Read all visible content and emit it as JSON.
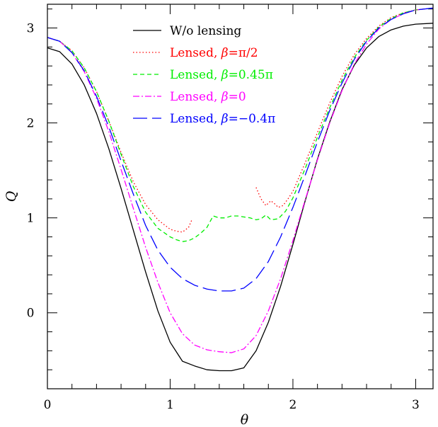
{
  "chart_data": {
    "type": "line",
    "xlabel": "θ",
    "ylabel": "Q",
    "xlim": [
      0,
      3.1416
    ],
    "ylim": [
      -0.8,
      3.25
    ],
    "x_ticks": [
      0,
      1,
      2,
      3
    ],
    "y_ticks": [
      0,
      1,
      2,
      3
    ],
    "x_tick_labels": [
      "0",
      "1",
      "2",
      "3"
    ],
    "y_tick_labels": [
      "0",
      "1",
      "2",
      "3"
    ],
    "legend_position": "top-center",
    "series": [
      {
        "name": "W/o lensing",
        "label_parts": [
          "W/o lensing"
        ],
        "color": "#000000",
        "dash": "solid",
        "segments": [
          [
            [
              0,
              2.79
            ],
            [
              0.1,
              2.75
            ],
            [
              0.2,
              2.62
            ],
            [
              0.3,
              2.4
            ],
            [
              0.4,
              2.1
            ],
            [
              0.5,
              1.73
            ],
            [
              0.6,
              1.31
            ],
            [
              0.7,
              0.87
            ],
            [
              0.8,
              0.43
            ],
            [
              0.9,
              0.02
            ],
            [
              1.0,
              -0.31
            ],
            [
              1.1,
              -0.51
            ],
            [
              1.2,
              -0.56
            ],
            [
              1.3,
              -0.6
            ],
            [
              1.4,
              -0.61
            ],
            [
              1.5,
              -0.61
            ],
            [
              1.6,
              -0.58
            ],
            [
              1.7,
              -0.4
            ],
            [
              1.8,
              -0.1
            ],
            [
              1.9,
              0.28
            ],
            [
              2.0,
              0.72
            ],
            [
              2.1,
              1.18
            ],
            [
              2.2,
              1.62
            ],
            [
              2.3,
              2.01
            ],
            [
              2.4,
              2.35
            ],
            [
              2.5,
              2.61
            ],
            [
              2.6,
              2.79
            ],
            [
              2.7,
              2.91
            ],
            [
              2.8,
              2.98
            ],
            [
              2.9,
              3.02
            ],
            [
              3.0,
              3.04
            ],
            [
              3.1416,
              3.05
            ]
          ]
        ]
      },
      {
        "name": "Lensed, β=π/2",
        "label_parts": [
          "Lensed, ",
          "β",
          "=π/2"
        ],
        "color": "#ff0000",
        "dash": "dotted",
        "segments": [
          [
            [
              0,
              2.9
            ],
            [
              0.1,
              2.86
            ],
            [
              0.2,
              2.76
            ],
            [
              0.3,
              2.58
            ],
            [
              0.4,
              2.33
            ],
            [
              0.5,
              2.02
            ],
            [
              0.6,
              1.69
            ],
            [
              0.7,
              1.38
            ],
            [
              0.8,
              1.14
            ],
            [
              0.9,
              0.98
            ],
            [
              1.0,
              0.88
            ],
            [
              1.05,
              0.86
            ],
            [
              1.1,
              0.85
            ],
            [
              1.15,
              0.9
            ],
            [
              1.18,
              0.99
            ]
          ],
          [
            [
              1.7,
              1.32
            ],
            [
              1.74,
              1.2
            ],
            [
              1.78,
              1.13
            ],
            [
              1.82,
              1.18
            ],
            [
              1.85,
              1.15
            ],
            [
              1.88,
              1.11
            ],
            [
              1.92,
              1.13
            ],
            [
              1.96,
              1.2
            ],
            [
              2.0,
              1.28
            ],
            [
              2.1,
              1.58
            ],
            [
              2.2,
              1.9
            ],
            [
              2.3,
              2.21
            ],
            [
              2.4,
              2.49
            ],
            [
              2.5,
              2.72
            ],
            [
              2.6,
              2.89
            ],
            [
              2.7,
              3.02
            ],
            [
              2.8,
              3.11
            ],
            [
              2.9,
              3.16
            ],
            [
              3.0,
              3.19
            ],
            [
              3.1416,
              3.21
            ]
          ]
        ]
      },
      {
        "name": "Lensed, β=0.45π",
        "label_parts": [
          "Lensed, ",
          "β",
          "=0.45π"
        ],
        "color": "#00ee00",
        "dash": "dashed",
        "segments": [
          [
            [
              0,
              2.9
            ],
            [
              0.1,
              2.86
            ],
            [
              0.2,
              2.76
            ],
            [
              0.3,
              2.58
            ],
            [
              0.4,
              2.33
            ],
            [
              0.5,
              2.02
            ],
            [
              0.6,
              1.67
            ],
            [
              0.7,
              1.33
            ],
            [
              0.8,
              1.06
            ],
            [
              0.9,
              0.89
            ],
            [
              1.0,
              0.8
            ],
            [
              1.05,
              0.77
            ],
            [
              1.1,
              0.75
            ],
            [
              1.15,
              0.76
            ],
            [
              1.2,
              0.79
            ],
            [
              1.25,
              0.84
            ],
            [
              1.3,
              0.9
            ],
            [
              1.35,
              1.02
            ],
            [
              1.4,
              1.0
            ],
            [
              1.45,
              1.0
            ],
            [
              1.5,
              1.02
            ],
            [
              1.55,
              1.02
            ],
            [
              1.6,
              1.01
            ],
            [
              1.65,
              1.0
            ],
            [
              1.7,
              0.98
            ],
            [
              1.74,
              0.99
            ],
            [
              1.78,
              1.03
            ],
            [
              1.82,
              0.98
            ],
            [
              1.88,
              0.99
            ],
            [
              1.94,
              1.07
            ],
            [
              2.0,
              1.21
            ],
            [
              2.1,
              1.52
            ],
            [
              2.2,
              1.85
            ],
            [
              2.3,
              2.16
            ],
            [
              2.4,
              2.45
            ],
            [
              2.5,
              2.69
            ],
            [
              2.6,
              2.87
            ],
            [
              2.7,
              3.01
            ],
            [
              2.8,
              3.1
            ],
            [
              2.9,
              3.16
            ],
            [
              3.0,
              3.19
            ],
            [
              3.1416,
              3.21
            ]
          ]
        ]
      },
      {
        "name": "Lensed, β=0",
        "label_parts": [
          "Lensed, ",
          "β",
          "=0"
        ],
        "color": "#ff00ff",
        "dash": "dashdot",
        "segments": [
          [
            [
              0,
              2.9
            ],
            [
              0.1,
              2.86
            ],
            [
              0.2,
              2.74
            ],
            [
              0.3,
              2.54
            ],
            [
              0.4,
              2.26
            ],
            [
              0.5,
              1.91
            ],
            [
              0.6,
              1.51
            ],
            [
              0.7,
              1.1
            ],
            [
              0.8,
              0.69
            ],
            [
              0.9,
              0.32
            ],
            [
              1.0,
              0.0
            ],
            [
              1.1,
              -0.22
            ],
            [
              1.2,
              -0.34
            ],
            [
              1.3,
              -0.39
            ],
            [
              1.4,
              -0.41
            ],
            [
              1.5,
              -0.42
            ],
            [
              1.6,
              -0.38
            ],
            [
              1.7,
              -0.24
            ],
            [
              1.8,
              0.02
            ],
            [
              1.9,
              0.36
            ],
            [
              2.0,
              0.76
            ],
            [
              2.1,
              1.19
            ],
            [
              2.2,
              1.61
            ],
            [
              2.3,
              2.0
            ],
            [
              2.4,
              2.34
            ],
            [
              2.5,
              2.62
            ],
            [
              2.6,
              2.83
            ],
            [
              2.7,
              2.99
            ],
            [
              2.8,
              3.09
            ],
            [
              2.9,
              3.15
            ],
            [
              3.0,
              3.19
            ],
            [
              3.1416,
              3.21
            ]
          ]
        ]
      },
      {
        "name": "Lensed, β=−0.4π",
        "label_parts": [
          "Lensed, ",
          "β",
          "=−0.4π"
        ],
        "color": "#0000ff",
        "dash": "longdash",
        "segments": [
          [
            [
              0,
              2.9
            ],
            [
              0.1,
              2.86
            ],
            [
              0.2,
              2.74
            ],
            [
              0.3,
              2.55
            ],
            [
              0.4,
              2.28
            ],
            [
              0.5,
              1.96
            ],
            [
              0.6,
              1.6
            ],
            [
              0.7,
              1.25
            ],
            [
              0.8,
              0.92
            ],
            [
              0.9,
              0.66
            ],
            [
              1.0,
              0.48
            ],
            [
              1.1,
              0.36
            ],
            [
              1.2,
              0.29
            ],
            [
              1.3,
              0.25
            ],
            [
              1.4,
              0.23
            ],
            [
              1.5,
              0.23
            ],
            [
              1.6,
              0.26
            ],
            [
              1.7,
              0.36
            ],
            [
              1.8,
              0.54
            ],
            [
              1.9,
              0.8
            ],
            [
              2.0,
              1.11
            ],
            [
              2.1,
              1.45
            ],
            [
              2.2,
              1.8
            ],
            [
              2.3,
              2.13
            ],
            [
              2.4,
              2.42
            ],
            [
              2.5,
              2.67
            ],
            [
              2.6,
              2.86
            ],
            [
              2.7,
              3.0
            ],
            [
              2.8,
              3.09
            ],
            [
              2.9,
              3.15
            ],
            [
              3.0,
              3.19
            ],
            [
              3.1416,
              3.21
            ]
          ]
        ]
      }
    ]
  }
}
